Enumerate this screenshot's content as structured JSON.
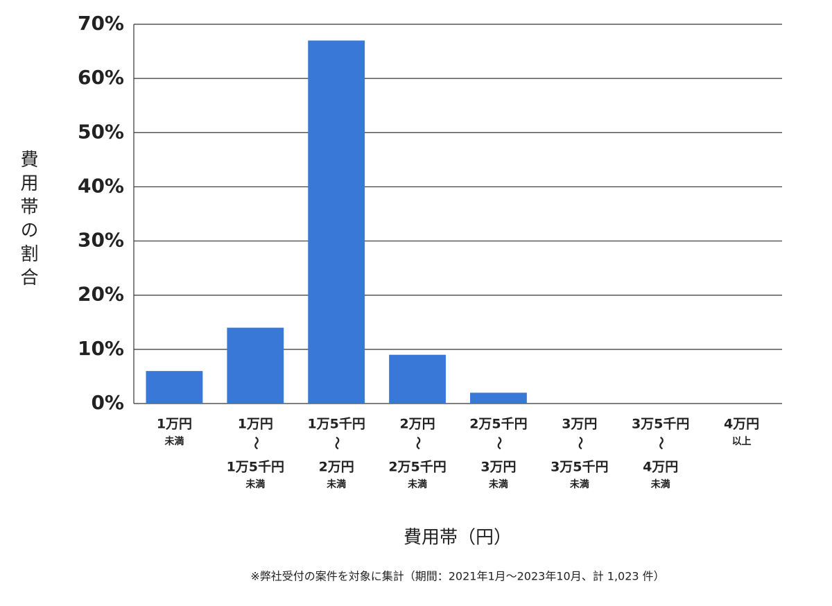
{
  "chart_data": {
    "type": "bar",
    "y_label": "費用帯の割合",
    "x_label": "費用帯（円）",
    "note": "※弊社受付の案件を対象に集計（期間：2021年1月～2023年10月、計 1,023 件）",
    "categories": [
      [
        "1万円",
        "未満"
      ],
      [
        "1万円",
        "～",
        "1万5千円",
        "未満"
      ],
      [
        "1万5千円",
        "～",
        "2万円",
        "未満"
      ],
      [
        "2万円",
        "～",
        "2万5千円",
        "未満"
      ],
      [
        "2万5千円",
        "～",
        "3万円",
        "未満"
      ],
      [
        "3万円",
        "～",
        "3万5千円",
        "未満"
      ],
      [
        "3万5千円",
        "～",
        "4万円",
        "未満"
      ],
      [
        "4万円",
        "以上"
      ]
    ],
    "values": [
      6,
      14,
      67,
      9,
      2,
      0,
      0,
      0
    ],
    "color": "#3a78d8",
    "ylim": [
      0,
      70
    ],
    "yticks": [
      {
        "value": 0,
        "label": "0%"
      },
      {
        "value": 10,
        "label": "10%"
      },
      {
        "value": 20,
        "label": "20%"
      },
      {
        "value": 30,
        "label": "30%"
      },
      {
        "value": 40,
        "label": "40%"
      },
      {
        "value": 50,
        "label": "50%"
      },
      {
        "value": 60,
        "label": "60%"
      },
      {
        "value": 70,
        "label": "70%"
      }
    ],
    "grid": true
  }
}
